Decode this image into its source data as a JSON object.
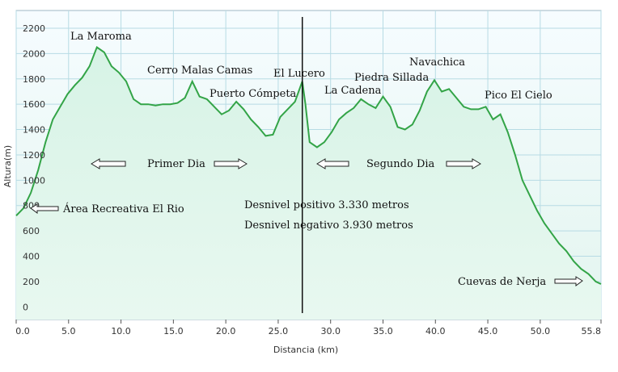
{
  "chart_data": {
    "type": "area",
    "xlabel": "Distancia  (km)",
    "ylabel": "Altura(m)",
    "xlim": [
      0,
      55.8
    ],
    "ylim": [
      -100,
      2340
    ],
    "grid": true,
    "x_ticks": [
      {
        "value": 0,
        "label": "0.0"
      },
      {
        "value": 5,
        "label": "5.0"
      },
      {
        "value": 10,
        "label": "10.0"
      },
      {
        "value": 15,
        "label": "15.0"
      },
      {
        "value": 20,
        "label": "20.0"
      },
      {
        "value": 25,
        "label": "25.0"
      },
      {
        "value": 30,
        "label": "30.0"
      },
      {
        "value": 35,
        "label": "35.0"
      },
      {
        "value": 40,
        "label": "40.0"
      },
      {
        "value": 45,
        "label": "45.0"
      },
      {
        "value": 50,
        "label": "50.0"
      },
      {
        "value": 55.8,
        "label": "55.8"
      }
    ],
    "y_ticks": [
      {
        "value": 0,
        "label": "0"
      },
      {
        "value": 200,
        "label": "200"
      },
      {
        "value": 400,
        "label": "400"
      },
      {
        "value": 600,
        "label": "600"
      },
      {
        "value": 800,
        "label": "800"
      },
      {
        "value": 1000,
        "label": "1000"
      },
      {
        "value": 1200,
        "label": "1200"
      },
      {
        "value": 1400,
        "label": "1400"
      },
      {
        "value": 1600,
        "label": "1600"
      },
      {
        "value": 1800,
        "label": "1800"
      },
      {
        "value": 2000,
        "label": "2000"
      },
      {
        "value": 2200,
        "label": "2200"
      }
    ],
    "series": [
      {
        "color": "#33a447",
        "fill": "#dcf2e8",
        "x": [
          0,
          0.7,
          1.4,
          2.1,
          2.8,
          3.5,
          4.2,
          4.9,
          5.6,
          6.3,
          7.0,
          7.7,
          8.4,
          9.1,
          9.8,
          10.5,
          11.2,
          11.9,
          12.6,
          13.3,
          14.0,
          14.7,
          15.4,
          16.1,
          16.8,
          17.5,
          18.2,
          18.9,
          19.6,
          20.3,
          21.0,
          21.7,
          22.4,
          23.1,
          23.8,
          24.5,
          25.2,
          25.9,
          26.6,
          27.3,
          27.6,
          28.0,
          28.7,
          29.4,
          30.1,
          30.8,
          31.5,
          32.2,
          32.9,
          33.6,
          34.3,
          35.0,
          35.7,
          36.4,
          37.1,
          37.8,
          38.5,
          39.2,
          39.9,
          40.6,
          41.3,
          42.0,
          42.7,
          43.4,
          44.1,
          44.8,
          45.5,
          46.2,
          46.9,
          47.6,
          48.3,
          49.0,
          49.7,
          50.4,
          51.1,
          51.8,
          52.5,
          53.2,
          53.9,
          54.6,
          55.3,
          55.8
        ],
        "values": [
          720,
          780,
          900,
          1080,
          1300,
          1480,
          1580,
          1680,
          1750,
          1810,
          1900,
          2050,
          2010,
          1900,
          1850,
          1780,
          1640,
          1600,
          1600,
          1590,
          1600,
          1600,
          1610,
          1650,
          1780,
          1660,
          1640,
          1580,
          1520,
          1550,
          1620,
          1560,
          1480,
          1420,
          1350,
          1360,
          1500,
          1560,
          1620,
          1780,
          1600,
          1300,
          1260,
          1300,
          1380,
          1480,
          1530,
          1570,
          1640,
          1600,
          1570,
          1660,
          1580,
          1420,
          1400,
          1440,
          1550,
          1700,
          1790,
          1700,
          1720,
          1650,
          1580,
          1560,
          1560,
          1580,
          1480,
          1520,
          1380,
          1200,
          1000,
          880,
          760,
          660,
          580,
          500,
          440,
          360,
          300,
          260,
          200,
          180
        ]
      }
    ],
    "annotations": {
      "peaks": [
        {
          "text": "La Maroma",
          "x": 8.2
        },
        {
          "text": "Cerro Malas Camas",
          "x": 17.0
        },
        {
          "text": "Puerto Cómpeta",
          "x": 21.5
        },
        {
          "text": "El Lucero",
          "x": 26.8
        },
        {
          "text": "La Cadena",
          "x": 32.8
        },
        {
          "text": "Piedra Sillada",
          "x": 35.7
        },
        {
          "text": "Navachica",
          "x": 39.4
        },
        {
          "text": "Pico El Cielo",
          "x": 46.0
        },
        {
          "text": "Área Recreativa El Rio",
          "x": 9.2
        },
        {
          "text": "Cuevas de Nerja",
          "x": 48.5
        }
      ],
      "days": {
        "first": "Primer Dia",
        "second": "Segundo Dia"
      },
      "stats": {
        "positive": "Desnivel positivo 3.330 metros",
        "negative": "Desnivel negativo 3.930 metros"
      },
      "divider_x": 27.3
    },
    "colors": {
      "plot_bg_top": "#f4fcfa",
      "plot_bg_bottom": "#dff6ec",
      "grid": "#b7dbe4",
      "line": "#33a447"
    }
  }
}
